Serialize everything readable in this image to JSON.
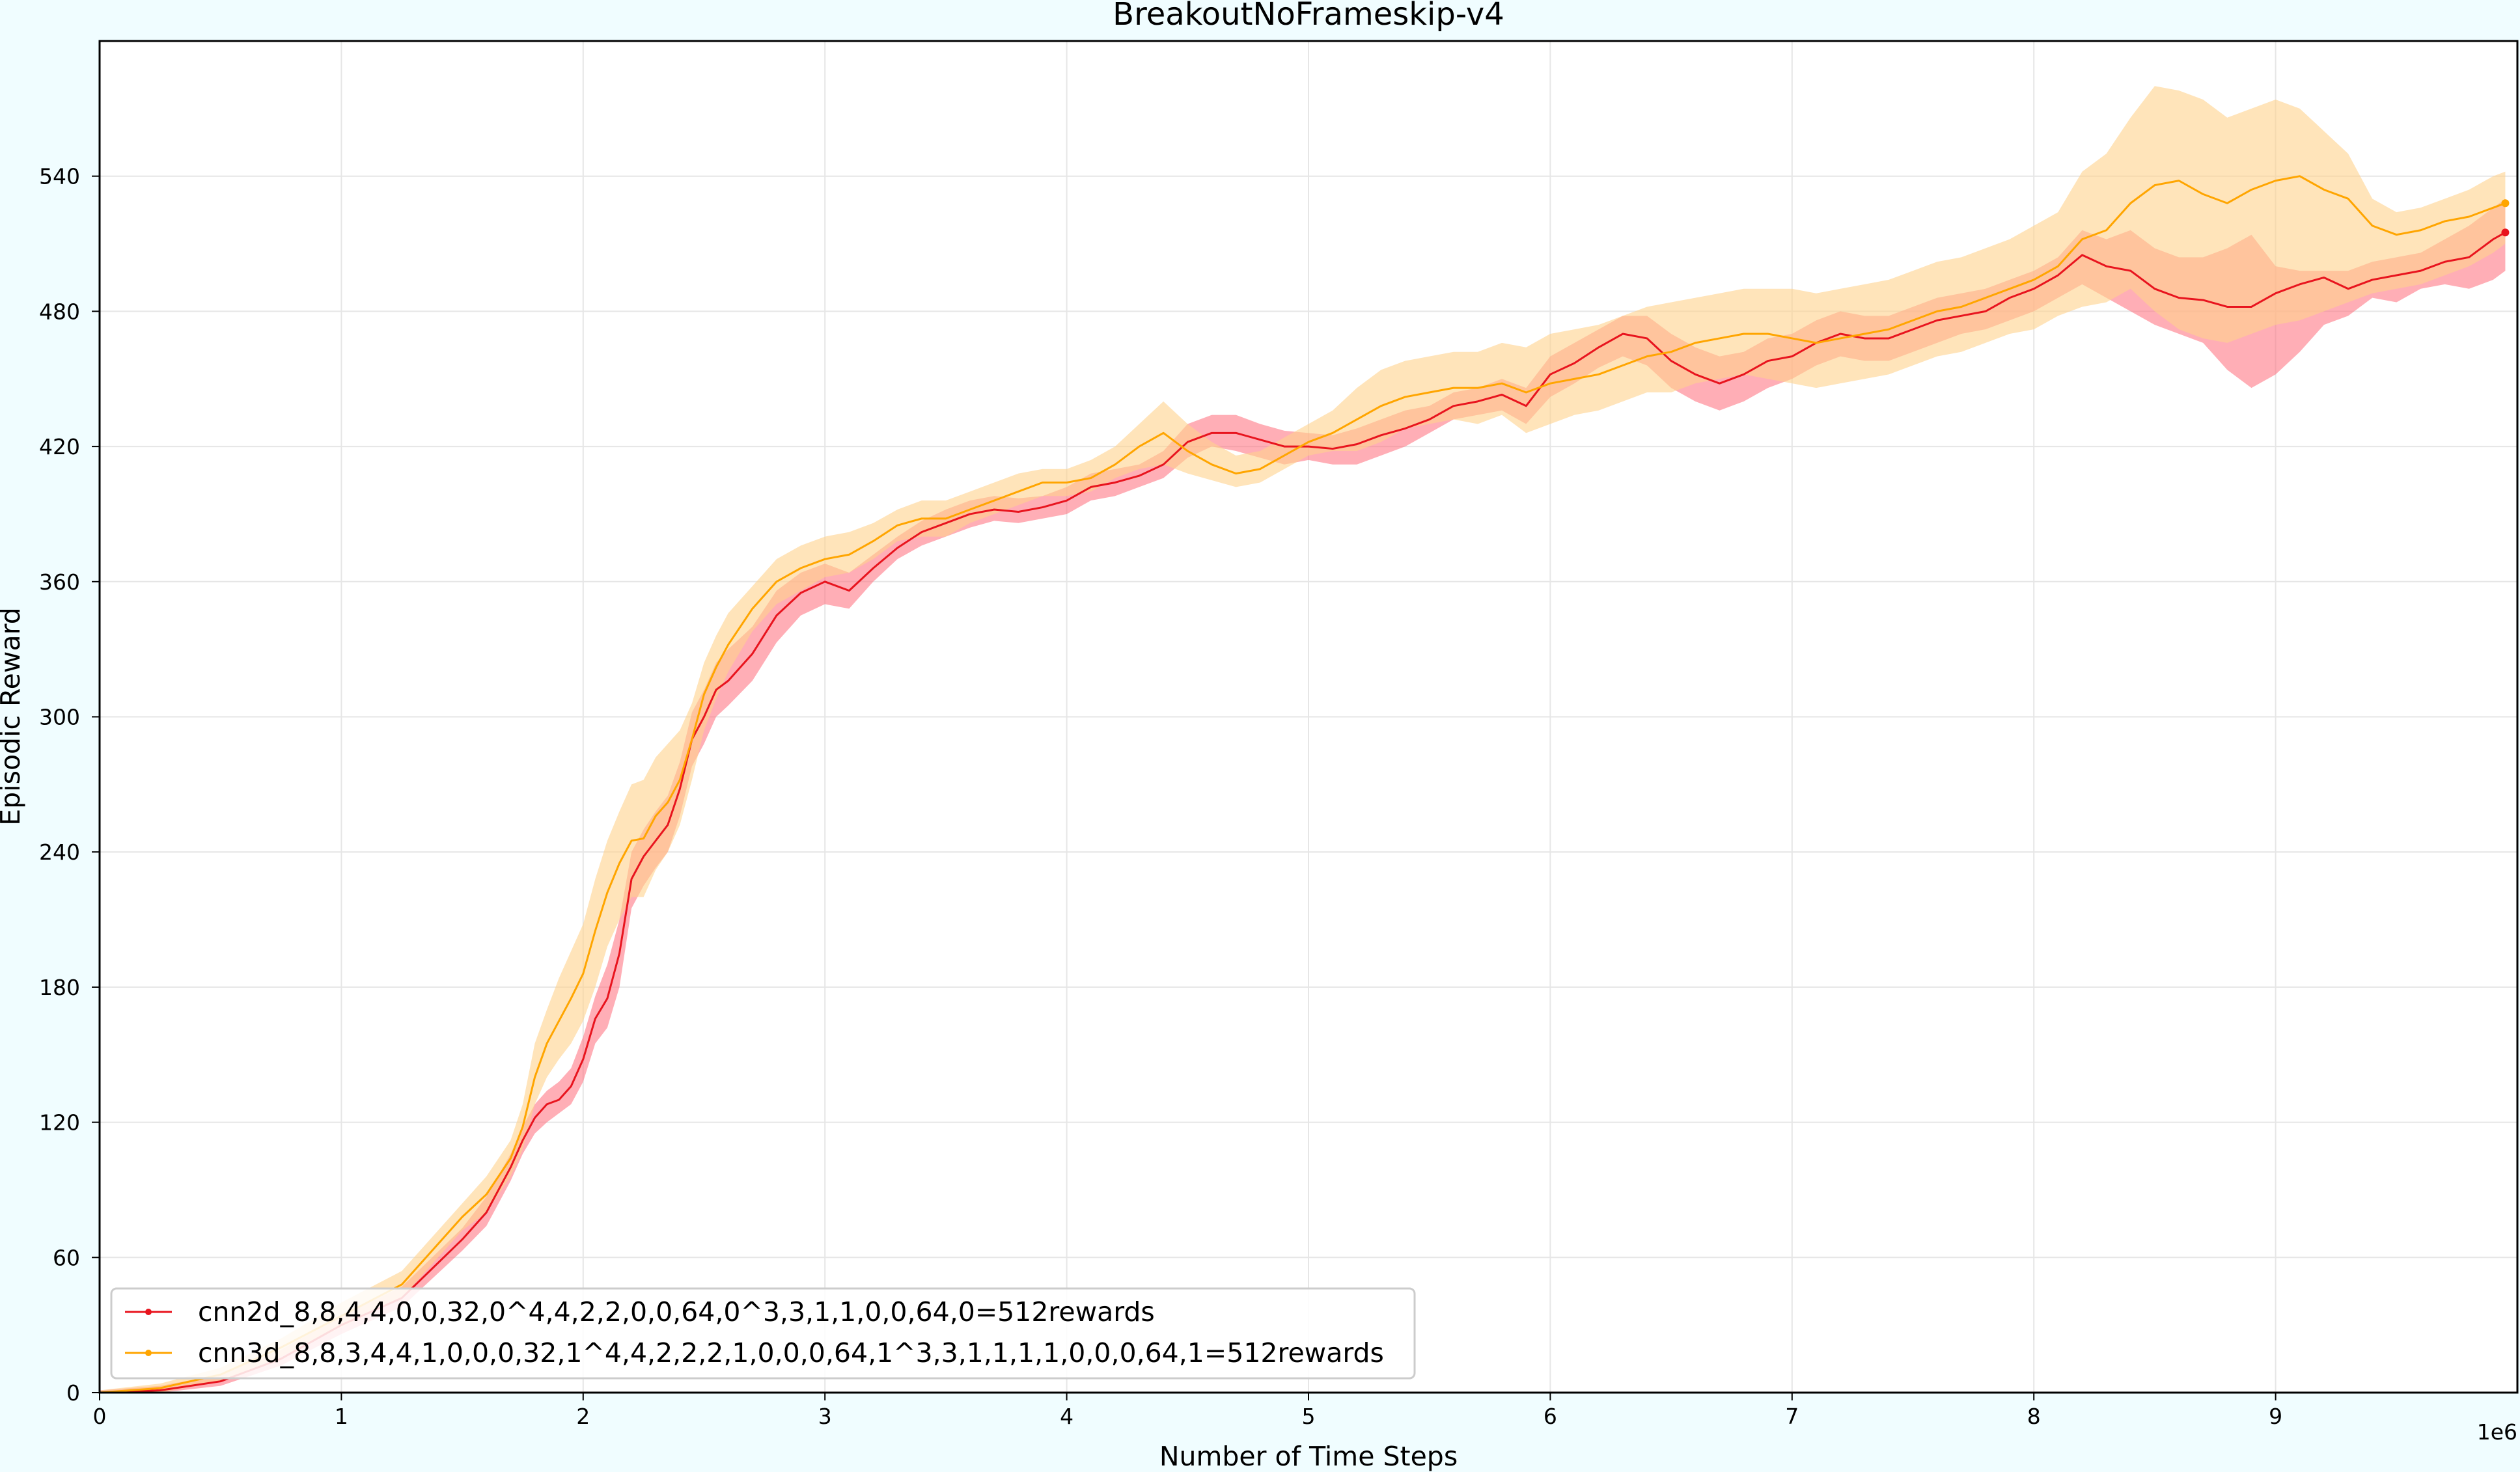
{
  "chart_data": {
    "type": "line",
    "title": "BreakoutNoFrameskip-v4",
    "xlabel": "Number of Time Steps",
    "ylabel": "Episodic Reward",
    "x_offset_label": "1e6",
    "xlim": [
      0,
      10
    ],
    "ylim": [
      0,
      600
    ],
    "xticks": [
      0,
      1,
      2,
      3,
      4,
      5,
      6,
      7,
      8,
      9
    ],
    "yticks": [
      0,
      60,
      120,
      180,
      240,
      300,
      360,
      420,
      480,
      540
    ],
    "grid": true,
    "legend_position": "lower-left",
    "series": [
      {
        "name": "cnn2d_8,8,4,4,0,0,32,0^4,4,2,2,0,0,64,0^3,3,1,1,0,0,64,0=512rewards",
        "color": "#e8141e",
        "band_color": "#ff6b7a",
        "x": [
          0,
          0.25,
          0.5,
          0.75,
          1.0,
          1.25,
          1.5,
          1.6,
          1.7,
          1.75,
          1.8,
          1.85,
          1.9,
          1.95,
          2.0,
          2.05,
          2.1,
          2.15,
          2.2,
          2.25,
          2.3,
          2.35,
          2.4,
          2.45,
          2.5,
          2.55,
          2.6,
          2.7,
          2.8,
          2.9,
          3.0,
          3.1,
          3.2,
          3.3,
          3.4,
          3.5,
          3.6,
          3.7,
          3.8,
          3.9,
          4.0,
          4.1,
          4.2,
          4.3,
          4.4,
          4.5,
          4.6,
          4.7,
          4.8,
          4.9,
          5.0,
          5.1,
          5.2,
          5.3,
          5.4,
          5.5,
          5.6,
          5.7,
          5.8,
          5.9,
          6.0,
          6.1,
          6.2,
          6.3,
          6.4,
          6.5,
          6.6,
          6.7,
          6.8,
          6.9,
          7.0,
          7.1,
          7.2,
          7.3,
          7.4,
          7.5,
          7.6,
          7.7,
          7.8,
          7.9,
          8.0,
          8.1,
          8.2,
          8.3,
          8.4,
          8.5,
          8.6,
          8.7,
          8.8,
          8.9,
          9.0,
          9.1,
          9.2,
          9.3,
          9.4,
          9.5,
          9.6,
          9.7,
          9.8,
          9.9,
          9.95
        ],
        "y": [
          0,
          1,
          5,
          15,
          30,
          42,
          68,
          80,
          100,
          112,
          122,
          128,
          130,
          136,
          148,
          166,
          175,
          195,
          228,
          238,
          245,
          252,
          268,
          290,
          300,
          312,
          316,
          328,
          345,
          355,
          360,
          356,
          366,
          375,
          382,
          386,
          390,
          392,
          391,
          393,
          396,
          402,
          404,
          407,
          412,
          422,
          426,
          426,
          423,
          420,
          420,
          419,
          421,
          425,
          428,
          432,
          438,
          440,
          443,
          438,
          452,
          457,
          464,
          470,
          468,
          458,
          452,
          448,
          452,
          458,
          460,
          466,
          470,
          468,
          468,
          472,
          476,
          478,
          480,
          486,
          490,
          496,
          505,
          500,
          498,
          490,
          486,
          485,
          482,
          482,
          488,
          492,
          495,
          490,
          494,
          496,
          498,
          502,
          504,
          512,
          515
        ],
        "lower": [
          0,
          0,
          3,
          12,
          26,
          38,
          63,
          74,
          94,
          106,
          115,
          120,
          124,
          128,
          138,
          155,
          162,
          180,
          215,
          225,
          233,
          240,
          256,
          278,
          288,
          300,
          305,
          316,
          333,
          345,
          350,
          348,
          360,
          370,
          376,
          380,
          384,
          387,
          386,
          388,
          390,
          396,
          398,
          402,
          406,
          415,
          420,
          418,
          415,
          412,
          414,
          412,
          412,
          416,
          420,
          426,
          432,
          434,
          436,
          430,
          442,
          448,
          455,
          460,
          456,
          446,
          440,
          436,
          440,
          446,
          450,
          456,
          460,
          458,
          458,
          462,
          466,
          470,
          472,
          476,
          480,
          486,
          492,
          486,
          480,
          474,
          470,
          466,
          454,
          446,
          452,
          462,
          474,
          478,
          486,
          484,
          490,
          492,
          490,
          494,
          498
        ],
        "upper": [
          1,
          3,
          8,
          19,
          34,
          47,
          73,
          87,
          106,
          118,
          128,
          134,
          138,
          144,
          158,
          176,
          190,
          210,
          240,
          250,
          258,
          265,
          280,
          302,
          312,
          324,
          330,
          340,
          356,
          364,
          368,
          364,
          372,
          380,
          387,
          392,
          396,
          398,
          397,
          398,
          402,
          408,
          410,
          412,
          418,
          430,
          434,
          434,
          430,
          427,
          426,
          425,
          428,
          432,
          436,
          438,
          444,
          446,
          450,
          446,
          460,
          466,
          472,
          478,
          478,
          470,
          464,
          460,
          462,
          468,
          470,
          476,
          480,
          478,
          478,
          482,
          486,
          488,
          490,
          494,
          498,
          504,
          516,
          512,
          516,
          508,
          504,
          504,
          508,
          514,
          500,
          498,
          498,
          498,
          502,
          504,
          506,
          512,
          518,
          526,
          530
        ]
      },
      {
        "name": "cnn3d_8,8,3,4,4,1,0,0,0,32,1^4,4,2,2,2,1,0,0,0,64,1^3,3,1,1,1,1,0,0,0,64,1=512rewards",
        "color": "#ffa500",
        "band_color": "#ffd28c",
        "x": [
          0,
          0.25,
          0.5,
          0.75,
          1.0,
          1.25,
          1.5,
          1.6,
          1.7,
          1.75,
          1.8,
          1.85,
          1.9,
          1.95,
          2.0,
          2.05,
          2.1,
          2.15,
          2.2,
          2.25,
          2.3,
          2.35,
          2.4,
          2.45,
          2.5,
          2.55,
          2.6,
          2.7,
          2.8,
          2.9,
          3.0,
          3.1,
          3.2,
          3.3,
          3.4,
          3.5,
          3.6,
          3.7,
          3.8,
          3.9,
          4.0,
          4.1,
          4.2,
          4.3,
          4.4,
          4.5,
          4.6,
          4.7,
          4.8,
          4.9,
          5.0,
          5.1,
          5.2,
          5.3,
          5.4,
          5.5,
          5.6,
          5.7,
          5.8,
          5.9,
          6.0,
          6.1,
          6.2,
          6.3,
          6.4,
          6.5,
          6.6,
          6.7,
          6.8,
          6.9,
          7.0,
          7.1,
          7.2,
          7.3,
          7.4,
          7.5,
          7.6,
          7.7,
          7.8,
          7.9,
          8.0,
          8.1,
          8.2,
          8.3,
          8.4,
          8.5,
          8.6,
          8.7,
          8.8,
          8.9,
          9.0,
          9.1,
          9.2,
          9.3,
          9.4,
          9.5,
          9.6,
          9.7,
          9.8,
          9.9,
          9.95
        ],
        "y": [
          0,
          2,
          8,
          20,
          34,
          48,
          78,
          88,
          104,
          118,
          140,
          155,
          165,
          175,
          186,
          205,
          222,
          235,
          245,
          246,
          256,
          262,
          272,
          290,
          310,
          322,
          332,
          348,
          360,
          366,
          370,
          372,
          378,
          385,
          388,
          388,
          392,
          396,
          400,
          404,
          404,
          406,
          412,
          420,
          426,
          418,
          412,
          408,
          410,
          416,
          422,
          426,
          432,
          438,
          442,
          444,
          446,
          446,
          448,
          444,
          448,
          450,
          452,
          456,
          460,
          462,
          466,
          468,
          470,
          470,
          468,
          466,
          468,
          470,
          472,
          476,
          480,
          482,
          486,
          490,
          494,
          500,
          512,
          516,
          528,
          536,
          538,
          532,
          528,
          534,
          538,
          540,
          534,
          530,
          518,
          514,
          516,
          520,
          522,
          526,
          528
        ],
        "lower": [
          0,
          0,
          5,
          16,
          29,
          42,
          72,
          80,
          96,
          108,
          128,
          140,
          148,
          155,
          165,
          180,
          198,
          210,
          220,
          220,
          232,
          240,
          252,
          272,
          294,
          308,
          320,
          338,
          350,
          356,
          362,
          364,
          370,
          378,
          380,
          380,
          386,
          390,
          394,
          398,
          398,
          400,
          406,
          410,
          412,
          408,
          405,
          402,
          404,
          410,
          416,
          418,
          418,
          422,
          428,
          430,
          432,
          430,
          434,
          426,
          430,
          434,
          436,
          440,
          444,
          444,
          448,
          450,
          452,
          450,
          448,
          446,
          448,
          450,
          452,
          456,
          460,
          462,
          466,
          470,
          472,
          478,
          482,
          484,
          490,
          480,
          472,
          468,
          466,
          470,
          474,
          476,
          480,
          484,
          488,
          490,
          492,
          496,
          500,
          506,
          510
        ],
        "upper": [
          1,
          4,
          11,
          24,
          40,
          54,
          84,
          96,
          112,
          128,
          155,
          170,
          184,
          196,
          208,
          228,
          245,
          258,
          270,
          272,
          282,
          288,
          294,
          306,
          324,
          336,
          346,
          358,
          370,
          376,
          380,
          382,
          386,
          392,
          396,
          396,
          400,
          404,
          408,
          410,
          410,
          414,
          420,
          430,
          440,
          430,
          422,
          416,
          418,
          424,
          430,
          436,
          446,
          454,
          458,
          460,
          462,
          462,
          466,
          464,
          470,
          472,
          474,
          478,
          482,
          484,
          486,
          488,
          490,
          490,
          490,
          488,
          490,
          492,
          494,
          498,
          502,
          504,
          508,
          512,
          518,
          524,
          542,
          550,
          566,
          580,
          578,
          574,
          566,
          570,
          574,
          570,
          560,
          550,
          530,
          524,
          526,
          530,
          534,
          540,
          542
        ]
      }
    ]
  }
}
